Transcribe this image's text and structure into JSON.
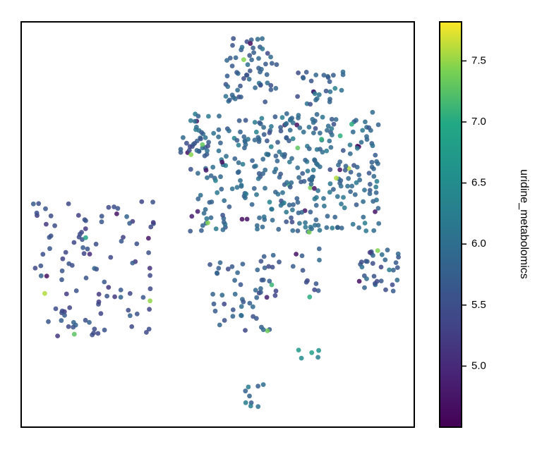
{
  "chart_data": {
    "type": "scatter",
    "title": "",
    "xlabel": "",
    "ylabel": "",
    "x_ticks_visible": false,
    "y_ticks_visible": false,
    "colormap": "viridis",
    "colorbar": {
      "label": "uridine_metabolomics",
      "range": [
        4.5,
        7.82
      ],
      "ticks": [
        5.0,
        5.5,
        6.0,
        6.5,
        7.0,
        7.5
      ],
      "tick_labels": [
        "5.0",
        "5.5",
        "6.0",
        "6.5",
        "7.0",
        "7.5"
      ],
      "placement": "right"
    },
    "xlim": [
      0,
      100
    ],
    "ylim": [
      0,
      100
    ],
    "clusters": [
      {
        "name": "upper-central-column",
        "x_range": [
          52,
          65
        ],
        "y_range": [
          80,
          96
        ],
        "n": 60,
        "mean": 5.75
      },
      {
        "name": "upper-right-arm",
        "x_range": [
          70,
          82
        ],
        "y_range": [
          78,
          88
        ],
        "n": 28,
        "mean": 5.8
      },
      {
        "name": "central-mass",
        "x_range": [
          43,
          91
        ],
        "y_range": [
          48,
          78
        ],
        "n": 360,
        "mean": 5.9
      },
      {
        "name": "left-small-knot",
        "x_range": [
          39,
          48
        ],
        "y_range": [
          67,
          72
        ],
        "n": 14,
        "mean": 5.6
      },
      {
        "name": "right-side-group",
        "x_range": [
          86,
          96
        ],
        "y_range": [
          33,
          44
        ],
        "n": 34,
        "mean": 5.7
      },
      {
        "name": "lower-left-middle",
        "x_range": [
          48,
          64
        ],
        "y_range": [
          23,
          41
        ],
        "n": 45,
        "mean": 5.7
      },
      {
        "name": "lower-middle",
        "x_range": [
          61,
          76
        ],
        "y_range": [
          32,
          45
        ],
        "n": 22,
        "mean": 5.6
      },
      {
        "name": "small-lower-right",
        "x_range": [
          69,
          76
        ],
        "y_range": [
          17,
          21
        ],
        "n": 5,
        "mean": 6.5
      },
      {
        "name": "bottom-middle",
        "x_range": [
          57,
          62
        ],
        "y_range": [
          5,
          11
        ],
        "n": 9,
        "mean": 5.9
      },
      {
        "name": "far-left-cluster",
        "x_range": [
          3,
          35
        ],
        "y_range": [
          22,
          56
        ],
        "n": 110,
        "mean": 5.5
      }
    ]
  }
}
